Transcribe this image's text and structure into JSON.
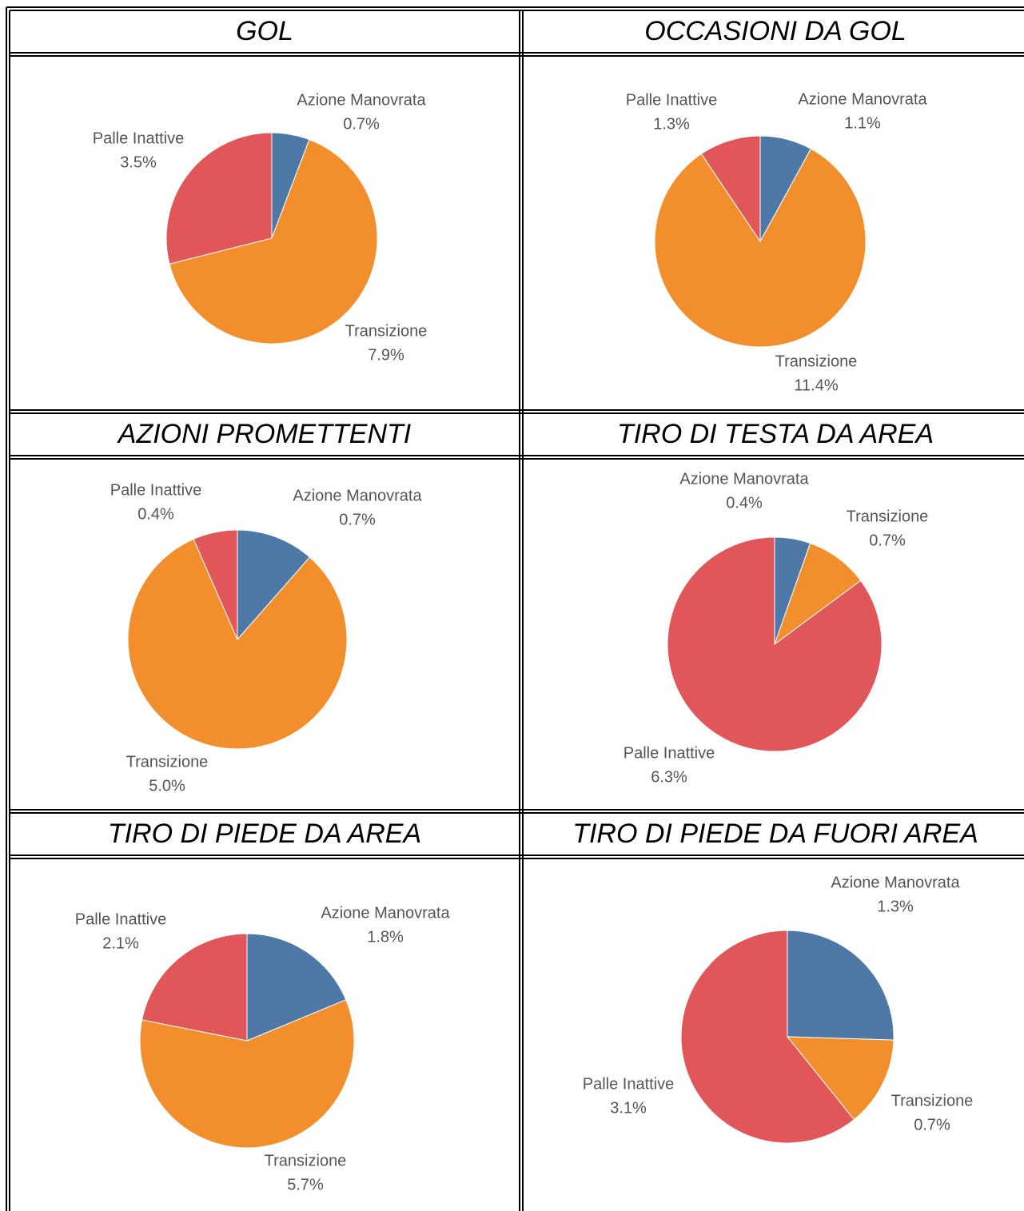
{
  "chart_data": [
    {
      "type": "pie",
      "title": "GOL",
      "categories": [
        "Azione Manovrata",
        "Transizione",
        "Palle Inattive"
      ],
      "values": [
        0.7,
        7.9,
        3.5
      ],
      "value_labels": [
        "0.7%",
        "7.9%",
        "3.5%"
      ],
      "colors": [
        "#4e79a7",
        "#f28e2b",
        "#e15759"
      ]
    },
    {
      "type": "pie",
      "title": "OCCASIONI DA GOL",
      "categories": [
        "Azione Manovrata",
        "Transizione",
        "Palle Inattive"
      ],
      "values": [
        1.1,
        11.4,
        1.3
      ],
      "value_labels": [
        "1.1%",
        "11.4%",
        "1.3%"
      ],
      "colors": [
        "#4e79a7",
        "#f28e2b",
        "#e15759"
      ]
    },
    {
      "type": "pie",
      "title": "AZIONI PROMETTENTI",
      "categories": [
        "Azione Manovrata",
        "Transizione",
        "Palle Inattive"
      ],
      "values": [
        0.7,
        5.0,
        0.4
      ],
      "value_labels": [
        "0.7%",
        "5.0%",
        "0.4%"
      ],
      "colors": [
        "#4e79a7",
        "#f28e2b",
        "#e15759"
      ]
    },
    {
      "type": "pie",
      "title": "TIRO DI TESTA DA AREA",
      "categories": [
        "Azione Manovrata",
        "Transizione",
        "Palle Inattive"
      ],
      "values": [
        0.4,
        0.7,
        6.3
      ],
      "value_labels": [
        "0.4%",
        "0.7%",
        "6.3%"
      ],
      "colors": [
        "#4e79a7",
        "#f28e2b",
        "#e15759"
      ]
    },
    {
      "type": "pie",
      "title": "TIRO DI PIEDE DA AREA",
      "categories": [
        "Azione Manovrata",
        "Transizione",
        "Palle Inattive"
      ],
      "values": [
        1.8,
        5.7,
        2.1
      ],
      "value_labels": [
        "1.8%",
        "5.7%",
        "2.1%"
      ],
      "colors": [
        "#4e79a7",
        "#f28e2b",
        "#e15759"
      ]
    },
    {
      "type": "pie",
      "title": "TIRO DI PIEDE DA FUORI AREA",
      "categories": [
        "Azione Manovrata",
        "Transizione",
        "Palle Inattive"
      ],
      "values": [
        1.3,
        0.7,
        3.1
      ],
      "value_labels": [
        "1.3%",
        "0.7%",
        "3.1%"
      ],
      "colors": [
        "#4e79a7",
        "#f28e2b",
        "#e15759"
      ]
    }
  ]
}
